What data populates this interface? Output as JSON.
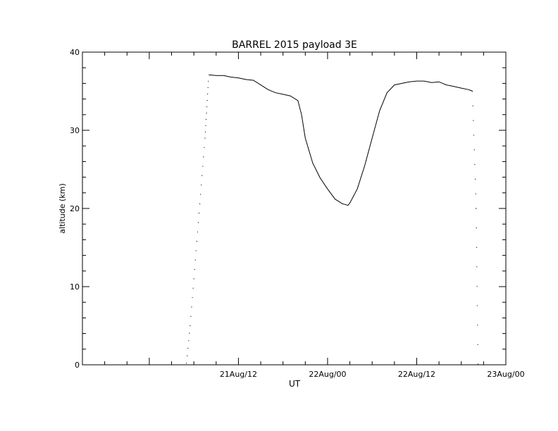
{
  "chart_data": {
    "type": "line",
    "title": "BARREL 2015 payload 3E",
    "xlabel": "UT",
    "ylabel": "altitude (km)",
    "xlim": [
      "2015-08-20T15:00",
      "2015-08-23T00:00"
    ],
    "ylim": [
      0,
      40
    ],
    "x_tick_labels": [
      "21Aug/12",
      "22Aug/00",
      "22Aug/12",
      "23Aug/00"
    ],
    "y_tick_labels": [
      "0",
      "10",
      "20",
      "30",
      "40"
    ],
    "grid": false,
    "series": [
      {
        "x": [
          "2015-08-21T05:00",
          "2015-08-21T05:30",
          "2015-08-21T06:00",
          "2015-08-21T06:30",
          "2015-08-21T07:00",
          "2015-08-21T07:30",
          "2015-08-21T07:45",
          "2015-08-21T08:00",
          "2015-08-21T09:00",
          "2015-08-21T10:00",
          "2015-08-21T11:00",
          "2015-08-21T12:00",
          "2015-08-21T13:00",
          "2015-08-21T14:00",
          "2015-08-21T15:00",
          "2015-08-21T16:00",
          "2015-08-21T17:00",
          "2015-08-21T18:00",
          "2015-08-21T19:00",
          "2015-08-21T20:00",
          "2015-08-21T20:30",
          "2015-08-21T21:00",
          "2015-08-21T22:00",
          "2015-08-21T23:00",
          "2015-08-22T00:00",
          "2015-08-22T01:00",
          "2015-08-22T02:00",
          "2015-08-22T02:45",
          "2015-08-22T03:00",
          "2015-08-22T04:00",
          "2015-08-22T05:00",
          "2015-08-22T06:00",
          "2015-08-22T07:00",
          "2015-08-22T08:00",
          "2015-08-22T09:00",
          "2015-08-22T10:00",
          "2015-08-22T11:00",
          "2015-08-22T12:00",
          "2015-08-22T13:00",
          "2015-08-22T14:00",
          "2015-08-22T15:00",
          "2015-08-22T16:00",
          "2015-08-22T17:00",
          "2015-08-22T18:00",
          "2015-08-22T19:00",
          "2015-08-22T19:30",
          "2015-08-22T20:00",
          "2015-08-22T20:15"
        ],
        "values": [
          0.2,
          5,
          11,
          17,
          23,
          29,
          33,
          37.1,
          37.0,
          37.0,
          36.8,
          36.7,
          36.5,
          36.4,
          35.8,
          35.2,
          34.8,
          34.6,
          34.4,
          33.8,
          32.0,
          29.0,
          25.8,
          23.9,
          22.5,
          21.2,
          20.6,
          20.4,
          20.7,
          22.5,
          25.5,
          29.0,
          32.5,
          34.8,
          35.8,
          36.0,
          36.2,
          36.3,
          36.3,
          36.1,
          36.2,
          35.8,
          35.6,
          35.4,
          35.2,
          35.0,
          20.0,
          0.1
        ]
      }
    ]
  }
}
